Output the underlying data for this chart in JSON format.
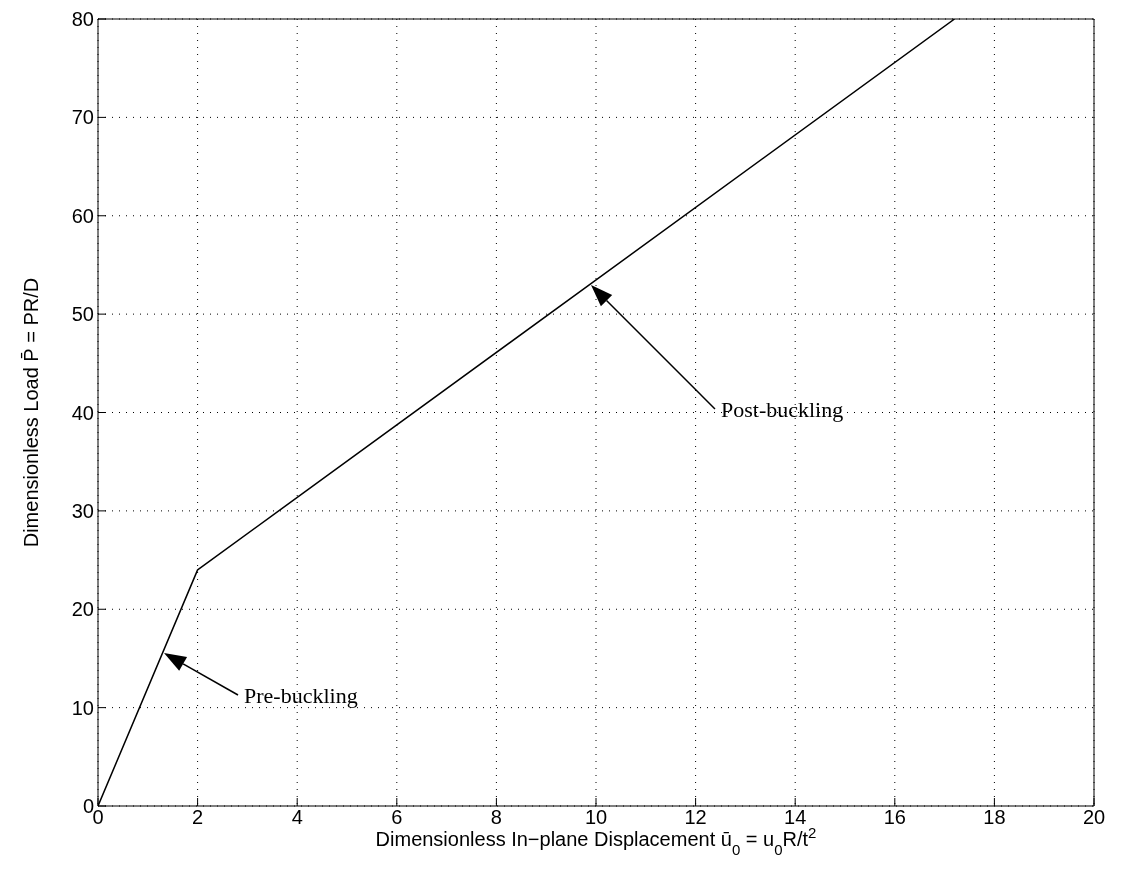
{
  "chart_data": {
    "type": "line",
    "xlabel": "Dimensionless In−plane Displacement ū$_{0}$ = u$_{0}$R/t$^{2}$",
    "ylabel": "Dimensionless Load P̄ = PR/D",
    "x": [
      0,
      2,
      17.2
    ],
    "series": [
      {
        "color": "#000000",
        "values": [
          0,
          24,
          80
        ]
      }
    ],
    "xlim": [
      0,
      20
    ],
    "xticks": [
      0,
      2,
      4,
      6,
      8,
      10,
      12,
      14,
      16,
      18,
      20
    ],
    "ylim": [
      0,
      80
    ],
    "yticks": [
      0,
      10,
      20,
      30,
      40,
      50,
      60,
      70,
      80
    ],
    "grid": true,
    "marker": "none",
    "line_style": "solid",
    "annotations": [
      "Pre-buckling",
      "Post-buckling"
    ]
  }
}
